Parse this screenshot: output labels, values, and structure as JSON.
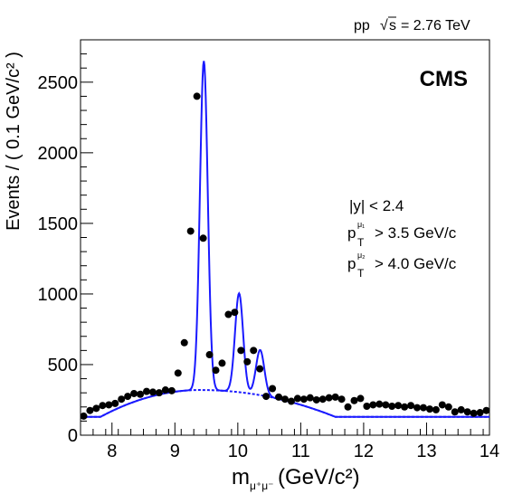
{
  "chart_data": {
    "type": "scatter",
    "header": "pp  √s = 2.76 TeV",
    "header_sqrt": "√",
    "header_s": "s",
    "header_pp": "pp",
    "header_energy": "= 2.76 TeV",
    "experiment_label": "CMS",
    "cuts": {
      "y": "|y| < 2.4",
      "pt1_p": "p",
      "pt1_sub": "T",
      "pt1_sup": "μ₁",
      "pt1_rest": "> 3.5 GeV/c",
      "pt2_p": "p",
      "pt2_sub": "T",
      "pt2_sup": "μ₂",
      "pt2_rest": "> 4.0 GeV/c"
    },
    "xlabel": "m",
    "xlabel_sub": "μ⁺μ⁻",
    "xlabel_units": "(GeV/c²)",
    "ylabel": "Events / ( 0.1 GeV/c² )",
    "xlim": [
      7.5,
      14
    ],
    "ylim": [
      0,
      2800
    ],
    "x_ticks": [
      "8",
      "9",
      "10",
      "11",
      "12",
      "13",
      "14"
    ],
    "y_ticks": [
      "0",
      "500",
      "1000",
      "1500",
      "2000",
      "2500"
    ],
    "x_tick_values": [
      8,
      9,
      10,
      11,
      12,
      13,
      14
    ],
    "y_tick_values": [
      0,
      500,
      1000,
      1500,
      2000,
      2500
    ],
    "colors": {
      "fit": "#1a1aff",
      "background_fit": "#1a1aff",
      "points": "#000000"
    },
    "points": {
      "x": [
        7.55,
        7.65,
        7.75,
        7.85,
        7.95,
        8.05,
        8.15,
        8.25,
        8.35,
        8.45,
        8.55,
        8.65,
        8.75,
        8.85,
        8.95,
        9.05,
        9.15,
        9.25,
        9.35,
        9.45,
        9.55,
        9.65,
        9.75,
        9.85,
        9.95,
        10.05,
        10.15,
        10.25,
        10.35,
        10.45,
        10.55,
        10.65,
        10.75,
        10.85,
        10.95,
        11.05,
        11.15,
        11.25,
        11.35,
        11.45,
        11.55,
        11.65,
        11.75,
        11.85,
        11.95,
        12.05,
        12.15,
        12.25,
        12.35,
        12.45,
        12.55,
        12.65,
        12.75,
        12.85,
        12.95,
        13.05,
        13.15,
        13.25,
        13.35,
        13.45,
        13.55,
        13.65,
        13.75,
        13.85,
        13.95
      ],
      "y": [
        135,
        175,
        190,
        210,
        215,
        225,
        255,
        275,
        295,
        290,
        310,
        305,
        300,
        320,
        315,
        440,
        655,
        1445,
        2400,
        1395,
        570,
        460,
        510,
        855,
        870,
        600,
        520,
        600,
        470,
        275,
        330,
        270,
        255,
        240,
        260,
        255,
        265,
        250,
        255,
        265,
        270,
        255,
        200,
        245,
        260,
        205,
        215,
        220,
        215,
        205,
        210,
        200,
        210,
        195,
        195,
        185,
        180,
        215,
        200,
        165,
        180,
        165,
        155,
        160,
        175
      ]
    },
    "fit_description": "signal (three peaks) plus background"
  }
}
